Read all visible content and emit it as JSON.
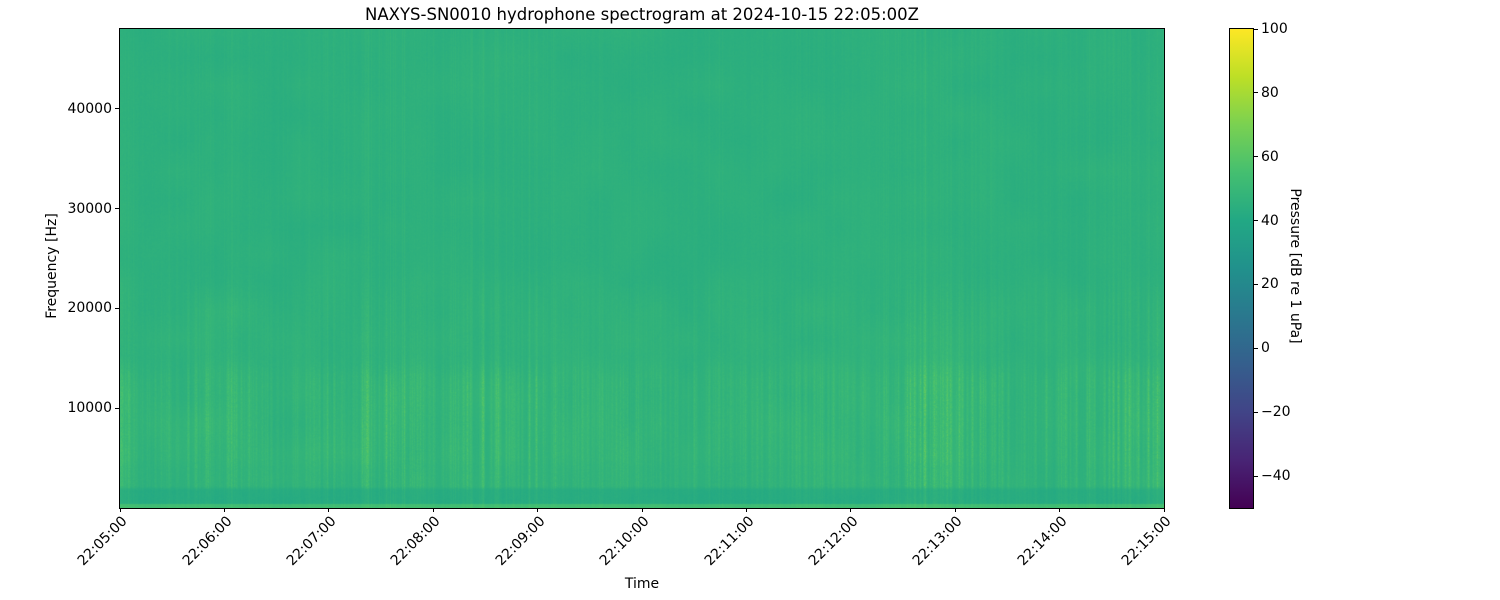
{
  "chart_data": {
    "type": "heatmap",
    "subtype": "spectrogram",
    "title": "NAXYS-SN0010 hydrophone spectrogram at 2024-10-15 22:05:00Z",
    "xlabel": "Time",
    "ylabel": "Frequency [Hz]",
    "x_tick_labels": [
      "22:05:00",
      "22:06:00",
      "22:07:00",
      "22:08:00",
      "22:09:00",
      "22:10:00",
      "22:11:00",
      "22:12:00",
      "22:13:00",
      "22:14:00",
      "22:15:00"
    ],
    "x_start": "22:05:00",
    "x_end": "22:15:00",
    "time_span_s": 600,
    "y_ticks_hz": [
      10000,
      20000,
      30000,
      40000
    ],
    "y_tick_labels": [
      "10000",
      "20000",
      "30000",
      "40000"
    ],
    "ylim_hz": [
      0,
      48000
    ],
    "grid": false,
    "colormap": "viridis",
    "viridis_anchors": [
      "#440154",
      "#482475",
      "#414487",
      "#355f8d",
      "#2a788e",
      "#21918c",
      "#22a884",
      "#44bf70",
      "#7ad151",
      "#bddf26",
      "#fde725"
    ],
    "colorbar": {
      "label": "Pressure [dB re 1 uPa]",
      "vmin": -50,
      "vmax": 100,
      "ticks": [
        100,
        80,
        60,
        40,
        20,
        0,
        -20,
        -40
      ],
      "tick_labels": [
        "100",
        "80",
        "60",
        "40",
        "20",
        "0",
        "−20",
        "−40"
      ],
      "position": "right"
    },
    "background_level_db": 44.5,
    "freq_bands_db": [
      {
        "f_lo_hz": 0,
        "f_hi_hz": 400,
        "base_db": 53.0,
        "streak_db": 3.0,
        "blend_hz": 150
      },
      {
        "f_lo_hz": 400,
        "f_hi_hz": 2000,
        "base_db": 42.0,
        "streak_db": 4.0,
        "blend_hz": 500
      },
      {
        "f_lo_hz": 2000,
        "f_hi_hz": 4500,
        "base_db": 45.0,
        "streak_db": 11.0,
        "blend_hz": 1500
      },
      {
        "f_lo_hz": 4500,
        "f_hi_hz": 14000,
        "base_db": 45.5,
        "streak_db": 13.0,
        "blend_hz": 3000
      },
      {
        "f_lo_hz": 14000,
        "f_hi_hz": 22000,
        "base_db": 45.0,
        "streak_db": 5.5,
        "blend_hz": 5000
      },
      {
        "f_lo_hz": 22000,
        "f_hi_hz": 48000,
        "base_db": 44.5,
        "streak_db": 2.2,
        "blend_hz": 0
      }
    ],
    "streak_activity_bin_s": 15,
    "streak_activity": [
      0.8,
      0.3,
      0.3,
      0.6,
      0.7,
      0.4,
      0.3,
      0.4,
      0.5,
      0.8,
      0.8,
      0.5,
      0.5,
      0.7,
      1.0,
      0.8,
      0.6,
      0.5,
      0.4,
      0.4,
      0.4,
      0.3,
      0.5,
      0.4,
      0.4,
      0.4,
      0.5,
      0.4,
      0.4,
      0.6,
      1.0,
      0.8,
      0.6,
      0.5,
      0.6,
      0.5,
      0.5,
      0.6,
      0.9,
      1.0
    ]
  }
}
